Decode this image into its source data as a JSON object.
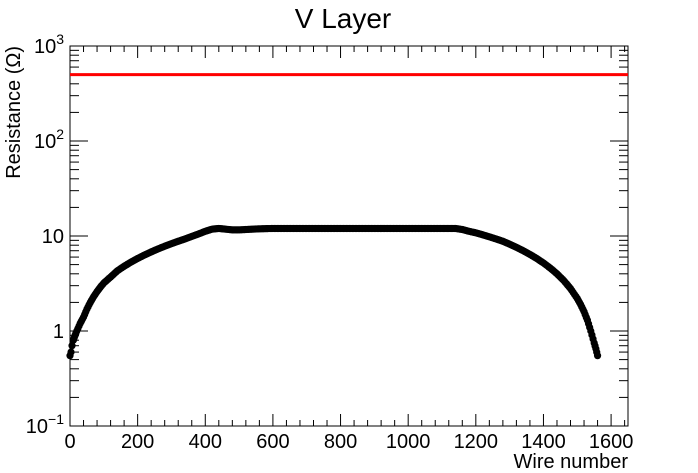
{
  "chart_data": {
    "type": "scatter",
    "title": "V Layer",
    "xlabel": "Wire number",
    "ylabel": "Resistance (Ω)",
    "x_scale": "linear",
    "y_scale": "log",
    "xlim": [
      0,
      1650
    ],
    "ylim": [
      0.1,
      1000
    ],
    "x_ticks": [
      0,
      200,
      400,
      600,
      800,
      1000,
      1200,
      1400,
      1600
    ],
    "x_tick_labels": [
      "0",
      "200",
      "400",
      "600",
      "800",
      "1000",
      "1200",
      "1400",
      "1600"
    ],
    "y_ticks": [
      {
        "value": 0.1,
        "base": "10",
        "exp": "−1"
      },
      {
        "value": 1,
        "base": "1",
        "exp": ""
      },
      {
        "value": 10,
        "base": "10",
        "exp": ""
      },
      {
        "value": 100,
        "base": "10",
        "exp": "2"
      },
      {
        "value": 1000,
        "base": "10",
        "exp": "3"
      }
    ],
    "grid": false,
    "legend": "none",
    "colors": {
      "data": "#000000",
      "threshold": "#ff0000"
    },
    "threshold_line": {
      "y": 500,
      "x_range": [
        0,
        1650
      ]
    },
    "series": [
      {
        "points": [
          [
            0,
            0.55
          ],
          [
            3,
            0.6
          ],
          [
            6,
            0.7
          ],
          [
            10,
            0.8
          ],
          [
            15,
            0.9
          ],
          [
            20,
            1.0
          ],
          [
            30,
            1.2
          ],
          [
            40,
            1.4
          ],
          [
            50,
            1.7
          ],
          [
            60,
            2.0
          ],
          [
            70,
            2.3
          ],
          [
            80,
            2.6
          ],
          [
            90,
            2.9
          ],
          [
            100,
            3.2
          ],
          [
            120,
            3.7
          ],
          [
            140,
            4.3
          ],
          [
            160,
            4.8
          ],
          [
            180,
            5.3
          ],
          [
            200,
            5.8
          ],
          [
            220,
            6.3
          ],
          [
            240,
            6.8
          ],
          [
            260,
            7.3
          ],
          [
            280,
            7.8
          ],
          [
            300,
            8.3
          ],
          [
            320,
            8.8
          ],
          [
            340,
            9.3
          ],
          [
            360,
            9.9
          ],
          [
            380,
            10.5
          ],
          [
            400,
            11.2
          ],
          [
            420,
            11.8
          ],
          [
            440,
            12.0
          ],
          [
            460,
            11.8
          ],
          [
            480,
            11.6
          ],
          [
            500,
            11.6
          ],
          [
            520,
            11.7
          ],
          [
            540,
            11.8
          ],
          [
            560,
            11.9
          ],
          [
            600,
            12.0
          ],
          [
            700,
            12.0
          ],
          [
            800,
            12.0
          ],
          [
            900,
            12.0
          ],
          [
            1000,
            12.0
          ],
          [
            1100,
            12.0
          ],
          [
            1140,
            12.0
          ],
          [
            1160,
            11.7
          ],
          [
            1180,
            11.2
          ],
          [
            1200,
            10.8
          ],
          [
            1220,
            10.3
          ],
          [
            1240,
            9.8
          ],
          [
            1260,
            9.3
          ],
          [
            1280,
            8.8
          ],
          [
            1300,
            8.2
          ],
          [
            1320,
            7.6
          ],
          [
            1340,
            7.0
          ],
          [
            1360,
            6.4
          ],
          [
            1380,
            5.8
          ],
          [
            1400,
            5.2
          ],
          [
            1420,
            4.6
          ],
          [
            1440,
            4.0
          ],
          [
            1460,
            3.4
          ],
          [
            1480,
            2.8
          ],
          [
            1500,
            2.2
          ],
          [
            1510,
            1.9
          ],
          [
            1520,
            1.6
          ],
          [
            1530,
            1.3
          ],
          [
            1540,
            1.0
          ],
          [
            1550,
            0.75
          ],
          [
            1555,
            0.65
          ],
          [
            1560,
            0.55
          ]
        ]
      }
    ]
  }
}
